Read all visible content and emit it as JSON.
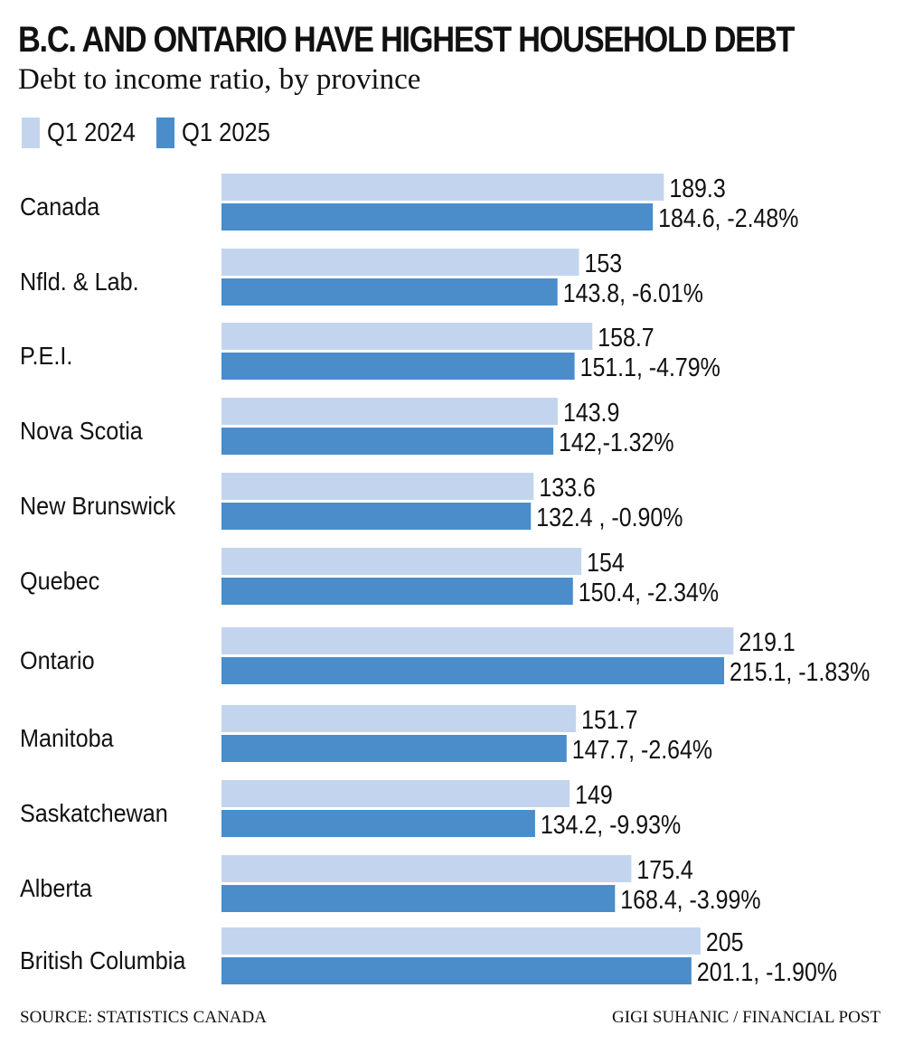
{
  "header": {
    "title": "B.C. AND ONTARIO HAVE HIGHEST HOUSEHOLD DEBT",
    "subtitle": "Debt to income ratio, by province"
  },
  "legend": [
    {
      "label": "Q1 2024",
      "color": "#c3d5ee"
    },
    {
      "label": "Q1 2025",
      "color": "#4a8dca"
    }
  ],
  "footer": {
    "source": "SOURCE: STATISTICS CANADA",
    "credit": "GIGI SUHANIC / FINANCIAL POST"
  },
  "chart_data": {
    "type": "bar",
    "orientation": "horizontal",
    "title": "B.C. AND ONTARIO HAVE HIGHEST HOUSEHOLD DEBT",
    "subtitle": "Debt to income ratio, by province",
    "xlabel": "",
    "ylabel": "",
    "xlim": [
      0,
      230
    ],
    "grid": false,
    "legend_position": "top-left",
    "categories": [
      "Canada",
      "Nfld. & Lab.",
      "P.E.I.",
      "Nova Scotia",
      "New Brunswick",
      "Quebec",
      "Ontario",
      "Manitoba",
      "Saskatchewan",
      "Alberta",
      "British Columbia"
    ],
    "series": [
      {
        "name": "Q1 2024",
        "color": "#c3d5ee",
        "values": [
          189.3,
          153,
          158.7,
          143.9,
          133.6,
          154,
          219.1,
          151.7,
          149,
          175.4,
          205
        ],
        "labels": [
          "189.3",
          "153",
          "158.7",
          "143.9",
          "133.6",
          "154",
          "219.1",
          "151.7",
          "149",
          "175.4",
          "205"
        ]
      },
      {
        "name": "Q1 2025",
        "color": "#4a8dca",
        "values": [
          184.6,
          143.8,
          151.1,
          142,
          132.4,
          150.4,
          215.1,
          147.7,
          134.2,
          168.4,
          201.1
        ],
        "labels": [
          "184.6, -2.48%",
          "143.8, -6.01%",
          "151.1, -4.79%",
          "142,-1.32%",
          "132.4 , -0.90%",
          "150.4, -2.34%",
          "215.1, -1.83%",
          "147.7, -2.64%",
          "134.2, -9.93%",
          "168.4, -3.99%",
          "201.1, -1.90%"
        ]
      }
    ],
    "pct_change": [
      -2.48,
      -6.01,
      -4.79,
      -1.32,
      -0.9,
      -2.34,
      -1.83,
      -2.64,
      -9.93,
      -3.99,
      -1.9
    ],
    "source": "SOURCE: STATISTICS CANADA",
    "credit": "GIGI SUHANIC / FINANCIAL POST"
  }
}
